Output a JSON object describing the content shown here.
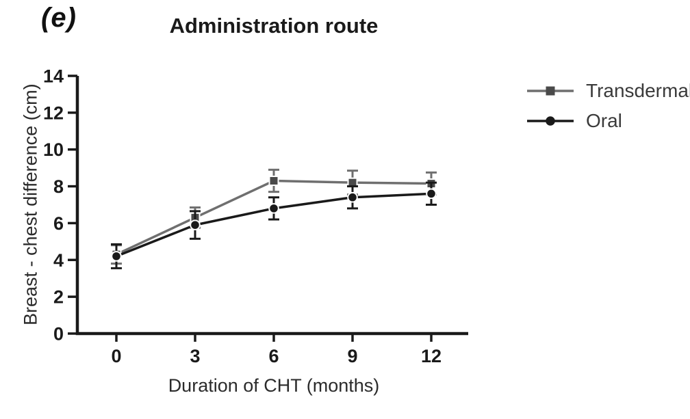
{
  "figure": {
    "panel_label": "(e)"
  },
  "chart_data": {
    "type": "line",
    "title": "Administration route",
    "xlabel": "Duration of CHT (months)",
    "ylabel": "Breast - chest difference (cm)",
    "x": [
      0,
      3,
      6,
      9,
      12
    ],
    "xticks": [
      "0",
      "3",
      "6",
      "9",
      "12"
    ],
    "yticks": [
      "0",
      "2",
      "4",
      "6",
      "8",
      "10",
      "12",
      "14"
    ],
    "ylim": [
      0,
      14
    ],
    "grid": false,
    "legend_position": "right",
    "error_bars": "symmetric, capped",
    "axis_color": "#1a1a1a",
    "series": [
      {
        "name": "Transdermal",
        "marker": "square",
        "line_color": "#6f6f6f",
        "marker_color": "#4a4a4a",
        "values": [
          4.3,
          6.3,
          8.3,
          8.2,
          8.15
        ],
        "errors": [
          0.5,
          0.55,
          0.6,
          0.65,
          0.6
        ]
      },
      {
        "name": "Oral",
        "marker": "circle",
        "line_color": "#1a1a1a",
        "marker_color": "#1a1a1a",
        "values": [
          4.2,
          5.9,
          6.8,
          7.4,
          7.6
        ],
        "errors": [
          0.65,
          0.75,
          0.6,
          0.6,
          0.6
        ]
      }
    ]
  }
}
